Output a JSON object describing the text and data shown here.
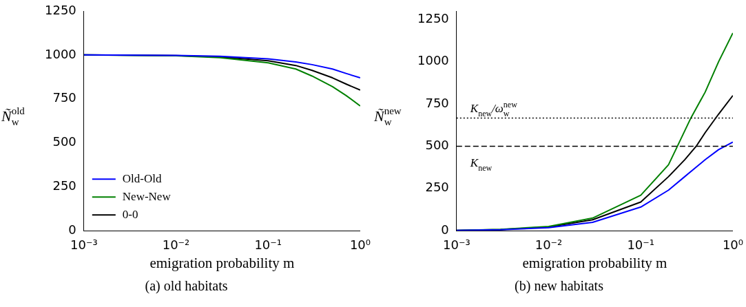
{
  "chart_data": [
    {
      "type": "line",
      "xlabel": "emigration probability m",
      "ylabel": "Ñ$_{w}$$^{old}$",
      "log": "x",
      "marker": "none",
      "legend": "bottom left",
      "xlim": [
        0.001,
        1
      ],
      "xticks": [
        {
          "value": 0.001,
          "label": "10⁻³"
        },
        {
          "value": 0.01,
          "label": "10⁻²"
        },
        {
          "value": 0.1,
          "label": "10⁻¹"
        },
        {
          "value": 1,
          "label": "10⁰"
        }
      ],
      "ylim": [
        0,
        1250
      ],
      "yticks": [
        0,
        250,
        500,
        750,
        1000,
        1250
      ],
      "x": [
        0.001,
        0.01,
        0.03,
        0.1,
        0.2,
        0.3,
        0.5,
        0.7,
        1
      ],
      "series": [
        {
          "name": "Old-Old",
          "color": "#0000ff",
          "values": [
            1000,
            997,
            993,
            978,
            960,
            945,
            920,
            895,
            870
          ]
        },
        {
          "name": "New-New",
          "color": "#008000",
          "values": [
            1000,
            995,
            985,
            955,
            920,
            880,
            820,
            770,
            710
          ]
        },
        {
          "name": "0-0",
          "color": "#000000",
          "values": [
            1000,
            996,
            989,
            967,
            940,
            912,
            870,
            835,
            800
          ]
        }
      ],
      "annotations": [
        "(a) old habitats"
      ]
    },
    {
      "type": "line",
      "xlabel": "emigration probability m",
      "ylabel": "Ñ$_{w}$$^{new}$",
      "log": "x",
      "marker": "none",
      "xlim": [
        0.001,
        1
      ],
      "xticks": [
        {
          "value": 0.001,
          "label": "10⁻³"
        },
        {
          "value": 0.01,
          "label": "10⁻²"
        },
        {
          "value": 0.1,
          "label": "10⁻¹"
        },
        {
          "value": 1,
          "label": "10⁰"
        }
      ],
      "ylim": [
        0,
        1300
      ],
      "yticks": [
        0,
        250,
        500,
        750,
        1000,
        1250
      ],
      "series": [
        {
          "color": "#0000ff",
          "x": [
            0.001,
            0.003,
            0.01,
            0.03,
            0.1,
            0.2,
            0.3,
            0.5,
            0.7,
            1
          ],
          "values": [
            2,
            6,
            18,
            50,
            140,
            240,
            320,
            420,
            480,
            525
          ]
        },
        {
          "color": "#008000",
          "x": [
            0.001,
            0.003,
            0.01,
            0.03,
            0.1,
            0.2,
            0.25,
            0.35,
            0.5,
            0.7,
            1
          ],
          "values": [
            2,
            8,
            25,
            75,
            210,
            390,
            500,
            667,
            820,
            1000,
            1170
          ]
        },
        {
          "color": "#000000",
          "x": [
            0.001,
            0.003,
            0.01,
            0.03,
            0.1,
            0.2,
            0.3,
            0.4,
            0.5,
            0.7,
            1
          ],
          "values": [
            2,
            7,
            22,
            65,
            170,
            320,
            420,
            500,
            580,
            690,
            800
          ]
        }
      ],
      "ref_lines": [
        {
          "axis": "y",
          "value": 667,
          "label": "K$_{new}$/ω$_{w}$$^{new}$",
          "color": "#000000",
          "line_style": "dotted"
        },
        {
          "axis": "y",
          "value": 500,
          "label": "K$_{new}$",
          "color": "#000000",
          "line_style": "dashed"
        }
      ],
      "annotations": [
        "(b) new habitats"
      ]
    }
  ]
}
